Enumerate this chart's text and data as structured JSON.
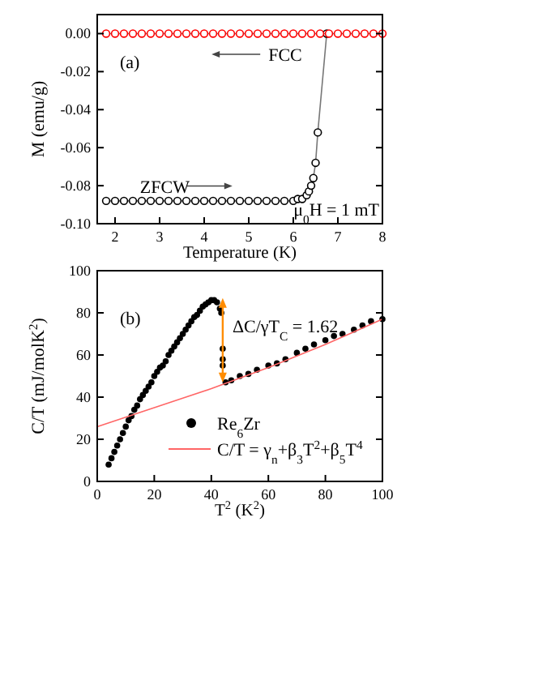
{
  "chart_data": [
    {
      "type": "line",
      "xlabel": "Temperature (K)",
      "ylabel": "M (emu/g)",
      "xlim": [
        1.6,
        8
      ],
      "xticks": [
        2,
        3,
        4,
        5,
        6,
        7,
        8
      ],
      "ylim": [
        -0.1,
        0.01
      ],
      "yticks": [
        {
          "value": 0,
          "label": "0.00"
        },
        {
          "value": -0.02,
          "label": "-0.02"
        },
        {
          "value": -0.04,
          "label": "-0.04"
        },
        {
          "value": -0.06,
          "label": "-0.06"
        },
        {
          "value": -0.08,
          "label": "-0.08"
        },
        {
          "value": -0.1,
          "label": "-0.10"
        }
      ],
      "marker": "circle",
      "annotations": [
        "(a)",
        "FCC",
        "ZFCW",
        "μ$_{0}$H = 1 mT"
      ],
      "series": [
        {
          "color": "#000000",
          "x": [
            1.8,
            2.0,
            2.2,
            2.4,
            2.6,
            2.8,
            3.0,
            3.2,
            3.4,
            3.6,
            3.8,
            4.0,
            4.2,
            4.4,
            4.6,
            4.8,
            5.0,
            5.2,
            5.4,
            5.6,
            5.8,
            6.0,
            6.1,
            6.2,
            6.3,
            6.35,
            6.4,
            6.45,
            6.5,
            6.55,
            6.75
          ],
          "values": [
            -0.088,
            -0.088,
            -0.088,
            -0.088,
            -0.088,
            -0.088,
            -0.088,
            -0.088,
            -0.088,
            -0.088,
            -0.088,
            -0.088,
            -0.088,
            -0.088,
            -0.088,
            -0.088,
            -0.088,
            -0.088,
            -0.088,
            -0.088,
            -0.088,
            -0.088,
            -0.087,
            -0.087,
            -0.085,
            -0.083,
            -0.08,
            -0.076,
            -0.068,
            -0.052,
            0
          ]
        },
        {
          "color": "#ff0000",
          "x": [
            1.8,
            2.0,
            2.2,
            2.4,
            2.6,
            2.8,
            3.0,
            3.2,
            3.4,
            3.6,
            3.8,
            4.0,
            4.2,
            4.4,
            4.6,
            4.8,
            5.0,
            5.2,
            5.4,
            5.6,
            5.8,
            6.0,
            6.2,
            6.4,
            6.6,
            6.8,
            7.0,
            7.2,
            7.4,
            7.6,
            7.8,
            8.0
          ],
          "values": [
            0,
            0,
            0,
            0,
            0,
            0,
            0,
            0,
            0,
            0,
            0,
            0,
            0,
            0,
            0,
            0,
            0,
            0,
            0,
            0,
            0,
            0,
            0,
            0,
            0,
            0,
            0,
            0,
            0,
            0,
            0,
            0
          ]
        }
      ]
    },
    {
      "type": "scatter",
      "xlabel": "T$^{2}$ (K$^{2}$)",
      "ylabel": "C/T (mJ/molK$^{2}$)",
      "xlim": [
        0,
        100
      ],
      "xticks": [
        0,
        20,
        40,
        60,
        80,
        100
      ],
      "ylim": [
        0,
        100
      ],
      "yticks": [
        0,
        20,
        40,
        60,
        80,
        100
      ],
      "legend": "bottom",
      "marker": "circle",
      "annotations": [
        "(b)",
        {
          "text": "ΔC/γT$_{C}$ = 1.62",
          "x": 44,
          "y": 67
        }
      ],
      "series": [
        {
          "name": "Re$_{6}$Zr",
          "color": "#000000",
          "x": [
            4,
            5,
            6,
            7,
            8,
            9,
            10,
            11,
            12,
            13,
            14,
            15,
            16,
            17,
            18,
            19,
            20,
            21,
            22,
            23,
            24,
            25,
            26,
            27,
            28,
            29,
            30,
            31,
            32,
            33,
            34,
            35,
            36,
            37,
            38,
            39,
            40,
            41,
            42,
            43,
            43.5,
            44,
            44,
            44,
            45,
            47,
            50,
            53,
            56,
            60,
            63,
            66,
            70,
            73,
            76,
            80,
            83,
            86,
            90,
            93,
            96,
            100
          ],
          "values": [
            8,
            11,
            14,
            17,
            20,
            23,
            26,
            29,
            31,
            34,
            36,
            39,
            41,
            43,
            45,
            47,
            50,
            52,
            54,
            55,
            57,
            60,
            62,
            64,
            66,
            68,
            70,
            72,
            74,
            76,
            78,
            79,
            81,
            83,
            84,
            85,
            86,
            86,
            85,
            82,
            80,
            63,
            58,
            55,
            47,
            48,
            50,
            51,
            53,
            55,
            56,
            58,
            61,
            63,
            65,
            67,
            69,
            70,
            72,
            74,
            76,
            77
          ]
        },
        {
          "type": "line",
          "name": "C/T = γ$_{n}$+β$_{3}$T$^{2}$+β$_{5}$T$^{4}$",
          "color": "#ff6666",
          "marker": "none",
          "x": [
            0,
            10,
            20,
            30,
            40,
            50,
            60,
            70,
            80,
            90,
            100
          ],
          "values": [
            26,
            30.5,
            35,
            39.5,
            44,
            49,
            54,
            59.5,
            65,
            71,
            77
          ]
        }
      ]
    }
  ]
}
